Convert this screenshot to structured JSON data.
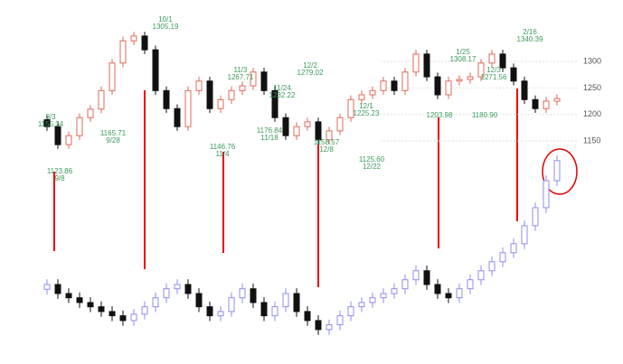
{
  "chart_data": {
    "type": "candlestick",
    "categories": [
      null,
      null,
      null,
      null,
      null,
      null,
      null,
      null,
      null,
      null,
      null,
      null,
      null,
      null,
      null,
      null,
      null,
      null,
      null,
      null,
      null,
      null,
      null,
      null,
      null,
      null,
      null,
      null,
      null,
      null,
      null,
      null,
      null,
      null,
      null,
      null,
      null,
      null,
      null,
      null,
      null,
      null,
      null,
      null,
      null,
      null,
      null,
      null
    ],
    "ylim": [
      729,
      1416
    ],
    "yticks": [
      1150,
      1200,
      1250,
      1300
    ],
    "series": [
      {
        "up_color": "#e06a5a",
        "down_color": "#111111",
        "open": [
          1190,
          1177,
          1143,
          1160,
          1194,
          1210,
          1245,
          1297,
          1339,
          1348,
          1322,
          1245,
          1211,
          1177,
          1245,
          1263,
          1211,
          1228,
          1245,
          1254,
          1280,
          1245,
          1194,
          1160,
          1177,
          1186,
          1152,
          1169,
          1194,
          1228,
          1237,
          1245,
          1263,
          1245,
          1280,
          1314,
          1271,
          1237,
          1263,
          1266,
          1271,
          1297,
          1314,
          1288,
          1263,
          1228,
          1211,
          1225
        ],
        "high": [
          1198,
          1185,
          1168,
          1202,
          1218,
          1253,
          1305,
          1347,
          1356,
          1356,
          1330,
          1253,
          1219,
          1253,
          1271,
          1271,
          1236,
          1253,
          1262,
          1288,
          1288,
          1253,
          1202,
          1185,
          1194,
          1194,
          1177,
          1202,
          1236,
          1245,
          1253,
          1271,
          1271,
          1288,
          1322,
          1322,
          1279,
          1271,
          1274,
          1279,
          1305,
          1322,
          1322,
          1296,
          1271,
          1236,
          1233,
          1238
        ],
        "low": [
          1169,
          1135,
          1135,
          1152,
          1186,
          1202,
          1237,
          1289,
          1331,
          1314,
          1237,
          1203,
          1169,
          1169,
          1237,
          1203,
          1203,
          1220,
          1237,
          1246,
          1237,
          1186,
          1152,
          1152,
          1169,
          1144,
          1144,
          1161,
          1186,
          1220,
          1229,
          1237,
          1237,
          1237,
          1272,
          1263,
          1229,
          1229,
          1255,
          1258,
          1263,
          1289,
          1280,
          1255,
          1220,
          1203,
          1203,
          1217
        ],
        "close": [
          1177,
          1143,
          1160,
          1194,
          1210,
          1245,
          1297,
          1339,
          1348,
          1322,
          1245,
          1211,
          1177,
          1245,
          1263,
          1211,
          1228,
          1245,
          1254,
          1280,
          1245,
          1194,
          1160,
          1177,
          1186,
          1152,
          1169,
          1194,
          1228,
          1237,
          1245,
          1263,
          1245,
          1280,
          1314,
          1271,
          1237,
          1263,
          1266,
          1271,
          1297,
          1314,
          1288,
          1263,
          1228,
          1211,
          1225,
          1230
        ]
      },
      {
        "up_color": "#8c8cf0",
        "down_color": "#111111",
        "open": [
          870,
          879,
          862,
          854,
          845,
          837,
          828,
          820,
          811,
          823,
          837,
          854,
          871,
          879,
          862,
          837,
          820,
          828,
          854,
          871,
          845,
          820,
          837,
          862,
          828,
          811,
          794,
          803,
          820,
          837,
          845,
          854,
          862,
          871,
          888,
          905,
          879,
          862,
          854,
          871,
          888,
          905,
          922,
          939,
          956,
          990,
          1024,
          1075
        ],
        "high": [
          889,
          889,
          872,
          864,
          855,
          847,
          838,
          830,
          833,
          847,
          864,
          881,
          889,
          889,
          872,
          847,
          838,
          864,
          881,
          881,
          855,
          847,
          872,
          872,
          838,
          821,
          813,
          830,
          847,
          855,
          864,
          872,
          881,
          898,
          915,
          915,
          889,
          872,
          881,
          898,
          915,
          932,
          949,
          966,
          1000,
          1034,
          1085,
          1123
        ],
        "low": [
          860,
          852,
          844,
          835,
          827,
          818,
          810,
          801,
          801,
          813,
          827,
          844,
          861,
          852,
          827,
          810,
          810,
          818,
          844,
          835,
          810,
          810,
          827,
          818,
          801,
          784,
          784,
          793,
          810,
          827,
          835,
          844,
          852,
          861,
          878,
          869,
          852,
          844,
          844,
          861,
          878,
          895,
          912,
          929,
          946,
          980,
          1014,
          1065
        ],
        "close": [
          879,
          862,
          854,
          845,
          837,
          828,
          820,
          811,
          823,
          837,
          854,
          871,
          879,
          862,
          837,
          820,
          828,
          854,
          871,
          845,
          820,
          837,
          862,
          828,
          811,
          794,
          803,
          820,
          837,
          845,
          854,
          862,
          871,
          888,
          905,
          879,
          862,
          854,
          871,
          888,
          905,
          922,
          939,
          956,
          990,
          1024,
          1075,
          1113
        ]
      }
    ],
    "annotations": [
      {
        "lines": [
          "9/3",
          "1155.34"
        ]
      },
      {
        "lines": [
          "1123.86",
          "9/8"
        ]
      },
      {
        "lines": [
          "1165.71",
          "9/28"
        ]
      },
      {
        "lines": [
          "10/1",
          "1305.19"
        ]
      },
      {
        "lines": [
          "1146.76",
          "11/4"
        ]
      },
      {
        "lines": [
          "11/3",
          "1267.71"
        ]
      },
      {
        "lines": [
          "1176.84",
          "11/18"
        ]
      },
      {
        "lines": [
          "11/24",
          "1232.22"
        ]
      },
      {
        "lines": [
          "12/2",
          "1279.02"
        ]
      },
      {
        "lines": [
          "1158.57",
          "12/8"
        ]
      },
      {
        "lines": [
          "12/1",
          "1225.23"
        ]
      },
      {
        "lines": [
          "1125.60",
          "12/22"
        ]
      },
      {
        "lines": [
          "1203.98"
        ]
      },
      {
        "lines": [
          "1/25",
          "1308.17"
        ]
      },
      {
        "lines": [
          "1180.90"
        ]
      },
      {
        "lines": [
          "12/3",
          "1271.56"
        ]
      },
      {
        "lines": [
          "2/16",
          "1340.39"
        ]
      }
    ]
  }
}
